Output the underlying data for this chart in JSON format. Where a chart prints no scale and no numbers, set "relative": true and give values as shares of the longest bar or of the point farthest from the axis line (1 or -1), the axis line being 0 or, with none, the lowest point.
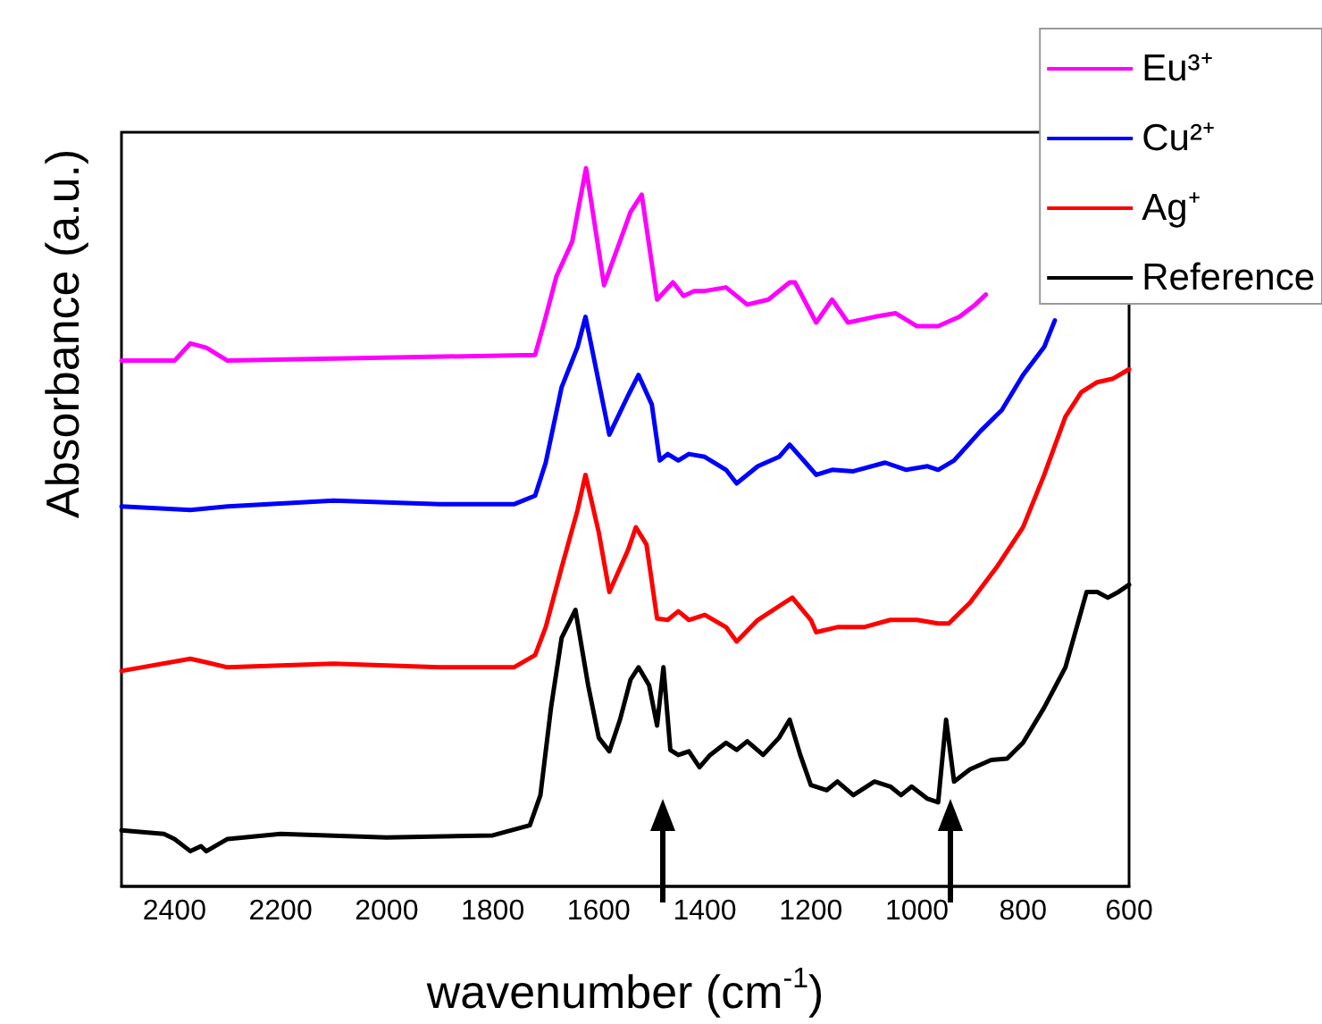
{
  "chart_data": {
    "type": "line",
    "relative": true,
    "xlabel": "wavenumber (cm$^{-1}$)",
    "ylabel": "Absorbance (a.u.)",
    "xlim": [
      2500,
      600
    ],
    "xticks": [
      2400,
      2200,
      2000,
      1800,
      1600,
      1400,
      1200,
      1000,
      800,
      600
    ],
    "legend": "top right",
    "series": [
      {
        "name": "Eu³⁺",
        "color": "#ff00ff",
        "x": [
          2500,
          2400,
          2370,
          2340,
          2300,
          1720,
          1700,
          1680,
          1650,
          1624,
          1590,
          1540,
          1519,
          1490,
          1460,
          1440,
          1420,
          1400,
          1360,
          1320,
          1280,
          1240,
          1230,
          1190,
          1160,
          1130,
          1080,
          1040,
          1000,
          960,
          920,
          890,
          870
        ],
        "values": [
          0.732,
          0.732,
          0.756,
          0.75,
          0.732,
          0.74,
          0.793,
          0.849,
          0.898,
          1,
          0.837,
          0.939,
          0.963,
          0.817,
          0.841,
          0.822,
          0.829,
          0.829,
          0.834,
          0.81,
          0.817,
          0.841,
          0.841,
          0.785,
          0.817,
          0.785,
          0.793,
          0.798,
          0.78,
          0.78,
          0.793,
          0.81,
          0.824
        ]
      },
      {
        "name": "Cu²⁺",
        "color": "#0000ff",
        "x": [
          2500,
          2370,
          2300,
          2100,
          1900,
          1760,
          1720,
          1700,
          1670,
          1640,
          1625,
          1600,
          1580,
          1545,
          1525,
          1500,
          1485,
          1470,
          1450,
          1430,
          1400,
          1360,
          1340,
          1300,
          1260,
          1240,
          1210,
          1190,
          1160,
          1120,
          1060,
          1020,
          980,
          960,
          930,
          880,
          840,
          800,
          760,
          740
        ],
        "values": [
          0.529,
          0.524,
          0.529,
          0.537,
          0.532,
          0.532,
          0.544,
          0.59,
          0.695,
          0.751,
          0.793,
          0.702,
          0.629,
          0.683,
          0.712,
          0.671,
          0.593,
          0.602,
          0.593,
          0.602,
          0.598,
          0.58,
          0.561,
          0.585,
          0.598,
          0.615,
          0.59,
          0.573,
          0.58,
          0.578,
          0.59,
          0.58,
          0.585,
          0.58,
          0.593,
          0.634,
          0.663,
          0.712,
          0.751,
          0.788
        ]
      },
      {
        "name": "Ag⁺",
        "color": "#ff0000",
        "x": [
          2500,
          2370,
          2340,
          2300,
          2100,
          1900,
          1760,
          1720,
          1700,
          1670,
          1640,
          1625,
          1600,
          1580,
          1545,
          1530,
          1510,
          1490,
          1470,
          1450,
          1430,
          1400,
          1360,
          1340,
          1300,
          1250,
          1235,
          1200,
          1190,
          1150,
          1100,
          1050,
          1000,
          960,
          940,
          900,
          850,
          800,
          760,
          720,
          690,
          660,
          630,
          600
        ],
        "values": [
          0.3,
          0.317,
          0.312,
          0.305,
          0.31,
          0.305,
          0.305,
          0.322,
          0.361,
          0.444,
          0.524,
          0.573,
          0.493,
          0.41,
          0.468,
          0.5,
          0.476,
          0.373,
          0.371,
          0.383,
          0.371,
          0.378,
          0.361,
          0.341,
          0.371,
          0.395,
          0.402,
          0.371,
          0.354,
          0.361,
          0.361,
          0.371,
          0.371,
          0.366,
          0.366,
          0.395,
          0.444,
          0.5,
          0.573,
          0.654,
          0.688,
          0.702,
          0.707,
          0.72
        ]
      },
      {
        "name": "Reference",
        "color": "#000000",
        "x": [
          2500,
          2420,
          2400,
          2370,
          2350,
          2340,
          2300,
          2200,
          2000,
          1800,
          1730,
          1710,
          1690,
          1670,
          1644,
          1620,
          1600,
          1580,
          1560,
          1540,
          1525,
          1505,
          1490,
          1478,
          1465,
          1450,
          1430,
          1410,
          1390,
          1360,
          1340,
          1320,
          1290,
          1260,
          1240,
          1220,
          1200,
          1170,
          1150,
          1120,
          1080,
          1050,
          1030,
          1010,
          980,
          960,
          945,
          930,
          900,
          860,
          830,
          800,
          760,
          720,
          680,
          660,
          640,
          620,
          600
        ],
        "values": [
          0.078,
          0.073,
          0.066,
          0.049,
          0.056,
          0.049,
          0.066,
          0.073,
          0.068,
          0.071,
          0.085,
          0.127,
          0.249,
          0.346,
          0.385,
          0.28,
          0.207,
          0.188,
          0.232,
          0.288,
          0.305,
          0.28,
          0.224,
          0.305,
          0.19,
          0.183,
          0.188,
          0.166,
          0.183,
          0.2,
          0.19,
          0.202,
          0.183,
          0.207,
          0.232,
          0.183,
          0.141,
          0.134,
          0.146,
          0.127,
          0.146,
          0.139,
          0.127,
          0.139,
          0.122,
          0.117,
          0.232,
          0.146,
          0.163,
          0.176,
          0.178,
          0.2,
          0.249,
          0.305,
          0.41,
          0.41,
          0.402,
          0.41,
          0.42
        ]
      }
    ]
  }
}
